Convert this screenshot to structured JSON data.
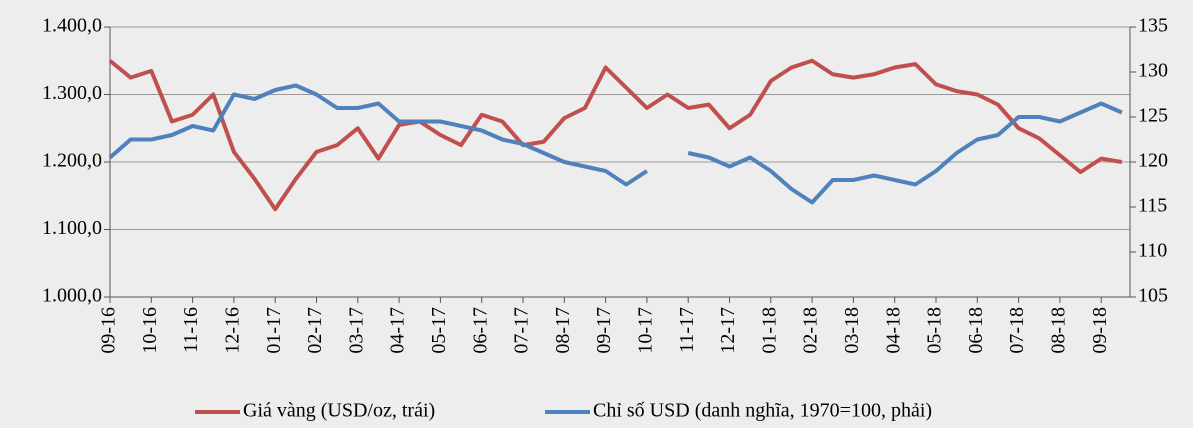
{
  "chart_data": {
    "type": "line",
    "categories": [
      "09-16",
      null,
      "10-16",
      null,
      "11-16",
      null,
      "12-16",
      null,
      "01-17",
      null,
      "02-17",
      null,
      "03-17",
      null,
      "04-17",
      null,
      "05-17",
      null,
      "06-17",
      null,
      "07-17",
      null,
      "08-17",
      null,
      "09-17",
      null,
      "10-17",
      null,
      "11-17",
      null,
      "12-17",
      null,
      "01-18",
      null,
      "02-18",
      null,
      "03-18",
      null,
      "04-18",
      null,
      "05-18",
      null,
      "06-18",
      null,
      "07-18",
      null,
      "08-18",
      null,
      "09-18",
      null
    ],
    "series": [
      {
        "name": "Giá vàng (USD/oz, trái)",
        "color": "#c0504d",
        "axis": "y",
        "values": [
          1350,
          1325,
          1335,
          1260,
          1270,
          1300,
          1215,
          1175,
          1130,
          1175,
          1215,
          1225,
          1250,
          1205,
          1255,
          1260,
          1240,
          1225,
          1270,
          1260,
          1225,
          1230,
          1265,
          1280,
          1340,
          1310,
          1280,
          1300,
          1280,
          1285,
          1250,
          1270,
          1320,
          1340,
          1350,
          1330,
          1325,
          1330,
          1340,
          1345,
          1315,
          1305,
          1300,
          1285,
          1250,
          1235,
          1210,
          1185,
          1205,
          1200
        ]
      },
      {
        "name": "Chỉ số USD (danh nghĩa, 1970=100, phải)",
        "color": "#4f81bd",
        "axis": "y2",
        "values": [
          120.5,
          122.5,
          122.5,
          123,
          124,
          123.5,
          127.5,
          127,
          128,
          128.5,
          127.5,
          126,
          126,
          126.5,
          124.5,
          124.5,
          124.5,
          124,
          123.5,
          122.5,
          122,
          121,
          120,
          119.5,
          119,
          117.5,
          119,
          null,
          121,
          120.5,
          119.5,
          120.5,
          119,
          117,
          115.5,
          118,
          118,
          118.5,
          118,
          117.5,
          119,
          121,
          122.5,
          123,
          125,
          125,
          124.5,
          125.5,
          126.5,
          125.5
        ]
      }
    ],
    "ylim": [
      1000,
      1400
    ],
    "yticks": [
      {
        "value": 1000,
        "label": "1.000,0"
      },
      {
        "value": 1100,
        "label": "1.100,0"
      },
      {
        "value": 1200,
        "label": "1.200,0"
      },
      {
        "value": 1300,
        "label": "1.300,0"
      },
      {
        "value": 1400,
        "label": "1.400,0"
      }
    ],
    "y2lim": [
      105,
      135
    ],
    "y2ticks": [
      105,
      110,
      115,
      120,
      125,
      130,
      135
    ],
    "grid": true,
    "legend": "bottom"
  }
}
